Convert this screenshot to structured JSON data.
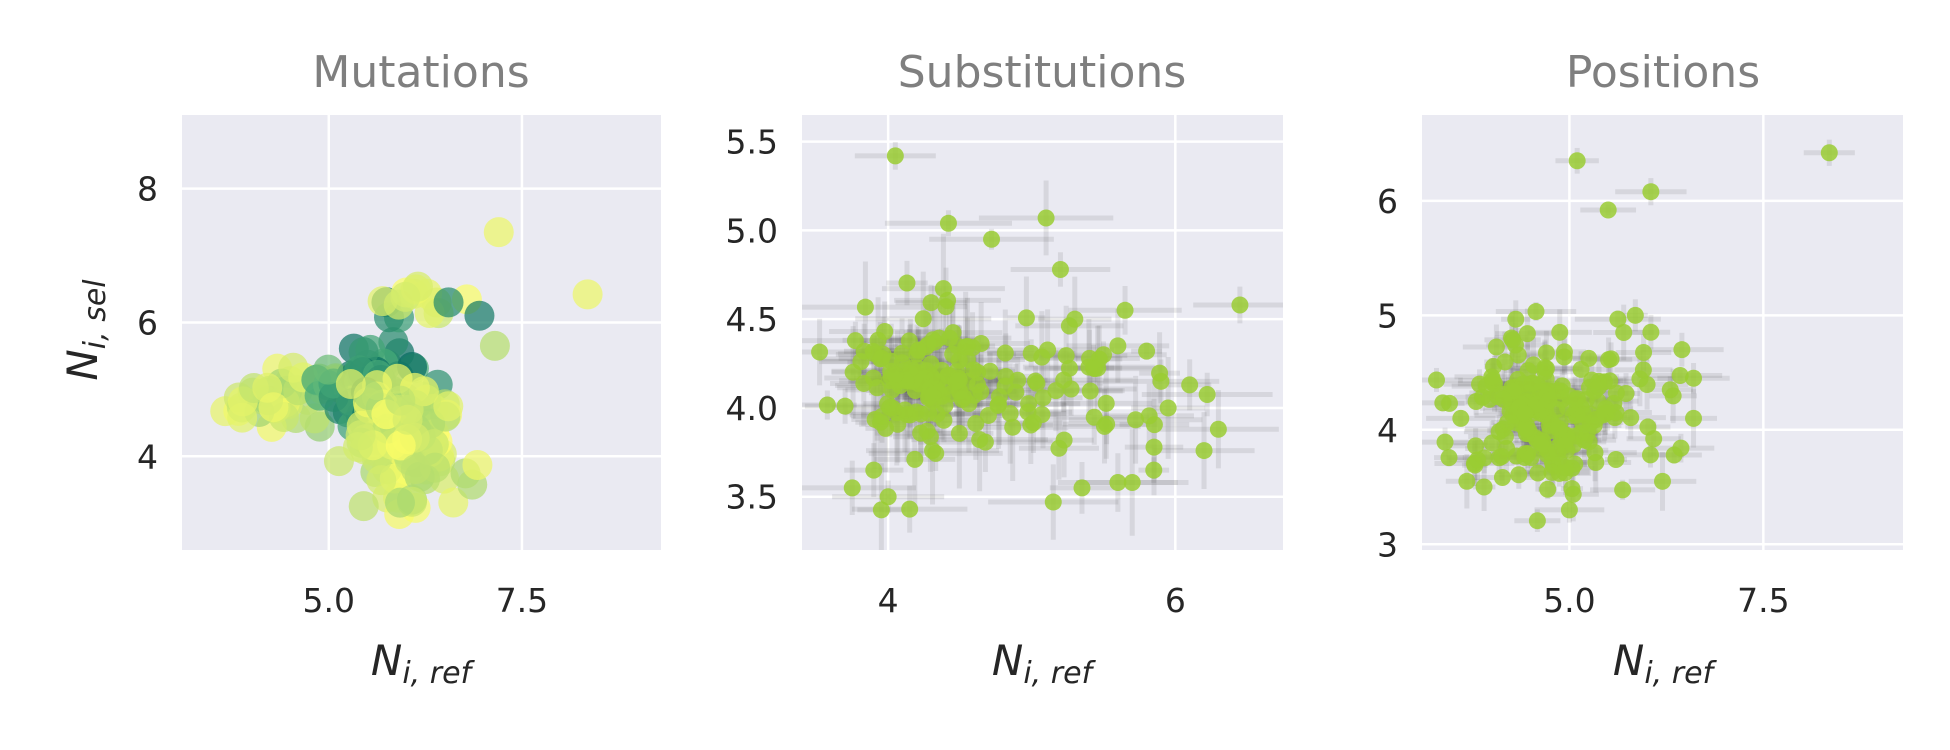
{
  "colors": {
    "plot_background": "#eaeaf2",
    "grid": "#ffffff",
    "point_green": "#9acd32",
    "errorbar": "#555555",
    "colormap_low": "#00665e",
    "colormap_mid": "#4cae7a",
    "colormap_high": "#ffff66"
  },
  "chart_data": [
    {
      "type": "scatter",
      "title": "Mutations",
      "xlabel": {
        "base": "N",
        "sub": "i, ref"
      },
      "ylabel": {
        "base": "N",
        "sub": "i, sel"
      },
      "xlim": [
        3.1,
        9.3
      ],
      "ylim": [
        2.6,
        9.1
      ],
      "xticks": [
        5.0,
        7.5
      ],
      "xtick_labels": [
        "5.0",
        "7.5"
      ],
      "yticks": [
        4,
        6,
        8
      ],
      "ytick_labels": [
        "4",
        "6",
        "8"
      ],
      "grid": true,
      "marker": "large circles, color-mapped green to yellow",
      "outliers": [
        {
          "x": 7.2,
          "y": 7.35,
          "c": 0.95
        },
        {
          "x": 8.35,
          "y": 6.42,
          "c": 0.95
        },
        {
          "x": 7.15,
          "y": 5.65,
          "c": 0.8
        },
        {
          "x": 6.95,
          "y": 6.1,
          "c": 0.15
        },
        {
          "x": 6.55,
          "y": 6.3,
          "c": 0.25
        }
      ],
      "clusters": [
        {
          "cx": 4.6,
          "cy": 4.9,
          "sx": 0.45,
          "sy": 0.25,
          "n": 45,
          "c_min": 0.7,
          "c_max": 1.0
        },
        {
          "cx": 5.6,
          "cy": 5.0,
          "sx": 0.35,
          "sy": 0.45,
          "n": 70,
          "c_min": 0.0,
          "c_max": 0.6
        },
        {
          "cx": 6.0,
          "cy": 4.3,
          "sx": 0.35,
          "sy": 0.45,
          "n": 110,
          "c_min": 0.75,
          "c_max": 1.0
        },
        {
          "cx": 6.15,
          "cy": 6.4,
          "sx": 0.25,
          "sy": 0.25,
          "n": 12,
          "c_min": 0.8,
          "c_max": 1.0
        }
      ]
    },
    {
      "type": "scatter",
      "title": "Substitutions",
      "xlabel": {
        "base": "N",
        "sub": "i, ref"
      },
      "ylabel": {
        "base": "",
        "sub": ""
      },
      "xlim": [
        3.4,
        6.75
      ],
      "ylim": [
        3.2,
        5.65
      ],
      "xticks": [
        4,
        6
      ],
      "xtick_labels": [
        "4",
        "6"
      ],
      "yticks": [
        3.5,
        4.0,
        4.5,
        5.0,
        5.5
      ],
      "ytick_labels": [
        "3.5",
        "4.0",
        "4.5",
        "5.0",
        "5.5"
      ],
      "grid": true,
      "marker": "green circles with grey error bars",
      "outliers": [
        {
          "x": 4.05,
          "y": 5.42
        },
        {
          "x": 6.45,
          "y": 4.58
        },
        {
          "x": 5.1,
          "y": 5.07
        },
        {
          "x": 4.42,
          "y": 5.04
        },
        {
          "x": 4.72,
          "y": 4.95
        },
        {
          "x": 5.2,
          "y": 4.78
        },
        {
          "x": 5.95,
          "y": 4.0
        },
        {
          "x": 6.1,
          "y": 4.13
        },
        {
          "x": 6.3,
          "y": 3.88
        },
        {
          "x": 6.2,
          "y": 3.76
        },
        {
          "x": 5.85,
          "y": 3.65
        },
        {
          "x": 5.7,
          "y": 3.58
        },
        {
          "x": 5.6,
          "y": 3.58
        },
        {
          "x": 5.35,
          "y": 3.55
        },
        {
          "x": 5.15,
          "y": 3.47
        },
        {
          "x": 4.0,
          "y": 3.5
        },
        {
          "x": 3.75,
          "y": 3.55
        },
        {
          "x": 4.15,
          "y": 3.43
        },
        {
          "x": 5.5,
          "y": 4.3
        },
        {
          "x": 5.6,
          "y": 4.35
        },
        {
          "x": 5.8,
          "y": 4.32
        },
        {
          "x": 5.65,
          "y": 4.55
        },
        {
          "x": 5.3,
          "y": 4.5
        },
        {
          "x": 5.9,
          "y": 4.15
        },
        {
          "x": 3.7,
          "y": 4.01
        },
        {
          "x": 3.9,
          "y": 3.65
        }
      ],
      "clusters": [
        {
          "cx": 4.3,
          "cy": 4.15,
          "sx": 0.25,
          "sy": 0.2,
          "n": 140
        },
        {
          "cx": 5.0,
          "cy": 4.1,
          "sx": 0.35,
          "sy": 0.2,
          "n": 25
        },
        {
          "cx": 5.6,
          "cy": 4.0,
          "sx": 0.3,
          "sy": 0.25,
          "n": 15
        }
      ]
    },
    {
      "type": "scatter",
      "title": "Positions",
      "xlabel": {
        "base": "N",
        "sub": "i, ref"
      },
      "ylabel": {
        "base": "",
        "sub": ""
      },
      "xlim": [
        3.1,
        9.3
      ],
      "ylim": [
        2.95,
        6.75
      ],
      "xticks": [
        5.0,
        7.5
      ],
      "xtick_labels": [
        "5.0",
        "7.5"
      ],
      "yticks": [
        3,
        4,
        5,
        6
      ],
      "ytick_labels": [
        "3",
        "4",
        "5",
        "6"
      ],
      "grid": true,
      "marker": "green circles with grey error bars",
      "outliers": [
        {
          "x": 8.35,
          "y": 6.42
        },
        {
          "x": 5.1,
          "y": 6.35
        },
        {
          "x": 6.05,
          "y": 6.08
        },
        {
          "x": 5.5,
          "y": 5.92
        },
        {
          "x": 5.85,
          "y": 5.0
        },
        {
          "x": 6.6,
          "y": 4.45
        },
        {
          "x": 6.45,
          "y": 4.7
        },
        {
          "x": 6.6,
          "y": 4.1
        },
        {
          "x": 6.3,
          "y": 4.35
        },
        {
          "x": 6.35,
          "y": 3.78
        },
        {
          "x": 6.2,
          "y": 3.55
        },
        {
          "x": 3.6,
          "y": 4.1
        },
        {
          "x": 3.9,
          "y": 3.5
        },
        {
          "x": 5.0,
          "y": 3.3
        },
        {
          "x": 5.7,
          "y": 4.85
        }
      ],
      "clusters": [
        {
          "cx": 4.6,
          "cy": 4.1,
          "sx": 0.45,
          "sy": 0.3,
          "n": 180
        },
        {
          "cx": 5.6,
          "cy": 4.2,
          "sx": 0.4,
          "sy": 0.35,
          "n": 30
        }
      ]
    }
  ]
}
